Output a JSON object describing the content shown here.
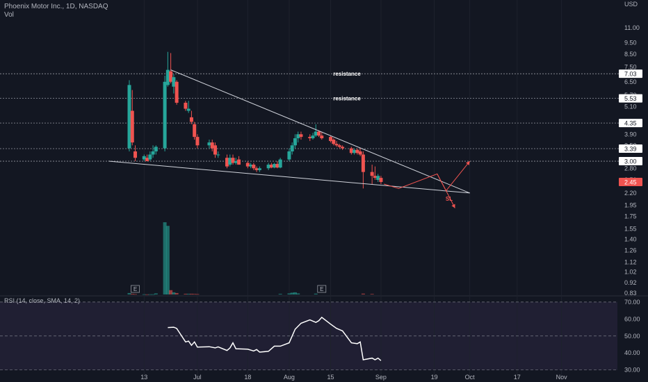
{
  "header": {
    "symbol_line": "Phoenix Motor Inc., 1D, NASDAQ",
    "volume_label": "Vol"
  },
  "colors": {
    "background": "#131722",
    "up": "#26a69a",
    "down": "#ef5350",
    "rsi_band": "#2a2540",
    "text": "#b2b5be"
  },
  "chart_data": [
    {
      "type": "candlestick",
      "title": "Phoenix Motor Inc., 1D, NASDAQ",
      "y_axis": {
        "unit": "USD",
        "scale": "log",
        "ticks": [
          "11.00",
          "9.50",
          "8.50",
          "7.50",
          "6.50",
          "5.70",
          "5.10",
          "4.35",
          "3.90",
          "3.50",
          "3.00",
          "2.80",
          "2.50",
          "2.20",
          "1.95",
          "1.75",
          "1.55",
          "1.40",
          "1.26",
          "1.12",
          "1.02",
          "0.92",
          "0.83"
        ]
      },
      "x_axis": {
        "ticks": [
          "13",
          "Jul",
          "18",
          "Aug",
          "15",
          "Sep",
          "19",
          "Oct",
          "17",
          "Nov"
        ],
        "range": [
          "2022-06-08",
          "2022-11-10"
        ]
      },
      "price_labels": [
        {
          "text": "7.03",
          "value": 7.03
        },
        {
          "text": "5.53",
          "value": 5.53
        },
        {
          "text": "4.35",
          "value": 4.35
        },
        {
          "text": "3.39",
          "value": 3.39
        },
        {
          "text": "3.00",
          "value": 3.0
        },
        {
          "text": "2.45",
          "value": 2.45,
          "color": "red"
        }
      ],
      "horizontal_levels": [
        7.03,
        5.53,
        4.35,
        3.39,
        3.0
      ],
      "annotations": [
        {
          "text": "resistance",
          "value": 7.03
        },
        {
          "text": "resistance",
          "value": 5.53
        },
        {
          "text": "SL",
          "color": "red"
        }
      ],
      "earnings_markers": [
        {
          "text": "E",
          "date": "2022-06-10"
        },
        {
          "text": "E",
          "date": "2022-08-12"
        }
      ],
      "candles": [
        {
          "date": "2022-06-08",
          "o": 3.4,
          "h": 6.6,
          "l": 3.3,
          "c": 6.3
        },
        {
          "date": "2022-06-09",
          "o": 4.9,
          "h": 6.0,
          "l": 3.5,
          "c": 3.6
        },
        {
          "date": "2022-06-10",
          "o": 3.3,
          "h": 3.5,
          "l": 3.0,
          "c": 3.1
        },
        {
          "date": "2022-06-13",
          "o": 3.05,
          "h": 3.2,
          "l": 3.0,
          "c": 3.15
        },
        {
          "date": "2022-06-14",
          "o": 3.1,
          "h": 3.2,
          "l": 3.0,
          "c": 3.0
        },
        {
          "date": "2022-06-15",
          "o": 3.05,
          "h": 3.3,
          "l": 3.0,
          "c": 3.2
        },
        {
          "date": "2022-06-16",
          "o": 3.2,
          "h": 3.5,
          "l": 3.1,
          "c": 3.3
        },
        {
          "date": "2022-06-17",
          "o": 3.3,
          "h": 3.5,
          "l": 3.2,
          "c": 3.45
        },
        {
          "date": "2022-06-20",
          "o": 3.4,
          "h": 6.9,
          "l": 3.3,
          "c": 6.5
        },
        {
          "date": "2022-06-21",
          "o": 6.3,
          "h": 8.7,
          "l": 6.2,
          "c": 7.3
        },
        {
          "date": "2022-06-22",
          "o": 7.2,
          "h": 8.6,
          "l": 6.4,
          "c": 6.5
        },
        {
          "date": "2022-06-23",
          "o": 6.2,
          "h": 7.0,
          "l": 5.8,
          "c": 6.8
        },
        {
          "date": "2022-06-24",
          "o": 6.5,
          "h": 6.6,
          "l": 5.2,
          "c": 5.3
        },
        {
          "date": "2022-06-27",
          "o": 5.3,
          "h": 5.4,
          "l": 4.9,
          "c": 5.0
        },
        {
          "date": "2022-06-28",
          "o": 4.9,
          "h": 5.4,
          "l": 4.8,
          "c": 5.0
        },
        {
          "date": "2022-06-29",
          "o": 4.6,
          "h": 4.9,
          "l": 4.3,
          "c": 4.4
        },
        {
          "date": "2022-06-30",
          "o": 4.3,
          "h": 4.4,
          "l": 3.7,
          "c": 3.8
        },
        {
          "date": "2022-07-01",
          "o": 3.8,
          "h": 3.9,
          "l": 3.4,
          "c": 3.5
        },
        {
          "date": "2022-07-05",
          "o": 3.5,
          "h": 3.7,
          "l": 3.4,
          "c": 3.6
        },
        {
          "date": "2022-07-06",
          "o": 3.6,
          "h": 3.7,
          "l": 3.3,
          "c": 3.4
        },
        {
          "date": "2022-07-07",
          "o": 3.5,
          "h": 3.6,
          "l": 3.1,
          "c": 3.2
        },
        {
          "date": "2022-07-08",
          "o": 3.2,
          "h": 3.3,
          "l": 3.1,
          "c": 3.2
        },
        {
          "date": "2022-07-11",
          "o": 3.1,
          "h": 3.2,
          "l": 2.8,
          "c": 2.85
        },
        {
          "date": "2022-07-12",
          "o": 2.9,
          "h": 3.2,
          "l": 2.85,
          "c": 3.1
        },
        {
          "date": "2022-07-13",
          "o": 3.1,
          "h": 3.2,
          "l": 2.9,
          "c": 2.95
        },
        {
          "date": "2022-07-14",
          "o": 2.95,
          "h": 3.1,
          "l": 2.9,
          "c": 3.0
        },
        {
          "date": "2022-07-15",
          "o": 3.05,
          "h": 3.15,
          "l": 2.9,
          "c": 2.9
        },
        {
          "date": "2022-07-18",
          "o": 2.95,
          "h": 3.0,
          "l": 2.8,
          "c": 2.85
        },
        {
          "date": "2022-07-19",
          "o": 2.85,
          "h": 2.95,
          "l": 2.8,
          "c": 2.9
        },
        {
          "date": "2022-07-20",
          "o": 2.9,
          "h": 2.95,
          "l": 2.75,
          "c": 2.8
        },
        {
          "date": "2022-07-21",
          "o": 2.8,
          "h": 2.85,
          "l": 2.7,
          "c": 2.75
        },
        {
          "date": "2022-07-22",
          "o": 2.75,
          "h": 2.85,
          "l": 2.7,
          "c": 2.8
        },
        {
          "date": "2022-07-25",
          "o": 2.8,
          "h": 2.95,
          "l": 2.75,
          "c": 2.9
        },
        {
          "date": "2022-07-26",
          "o": 2.9,
          "h": 2.95,
          "l": 2.8,
          "c": 2.82
        },
        {
          "date": "2022-07-27",
          "o": 2.82,
          "h": 2.95,
          "l": 2.8,
          "c": 2.92
        },
        {
          "date": "2022-07-28",
          "o": 2.92,
          "h": 3.0,
          "l": 2.8,
          "c": 2.82
        },
        {
          "date": "2022-07-29",
          "o": 2.82,
          "h": 3.1,
          "l": 2.8,
          "c": 3.05
        },
        {
          "date": "2022-08-01",
          "o": 3.05,
          "h": 3.4,
          "l": 3.0,
          "c": 3.3
        },
        {
          "date": "2022-08-02",
          "o": 3.3,
          "h": 3.6,
          "l": 3.2,
          "c": 3.5
        },
        {
          "date": "2022-08-03",
          "o": 3.5,
          "h": 3.9,
          "l": 3.4,
          "c": 3.75
        },
        {
          "date": "2022-08-04",
          "o": 3.75,
          "h": 4.0,
          "l": 3.6,
          "c": 3.9
        },
        {
          "date": "2022-08-05",
          "o": 3.9,
          "h": 4.0,
          "l": 3.7,
          "c": 3.8
        },
        {
          "date": "2022-08-08",
          "o": 3.8,
          "h": 3.9,
          "l": 3.65,
          "c": 3.75
        },
        {
          "date": "2022-08-09",
          "o": 3.75,
          "h": 3.95,
          "l": 3.7,
          "c": 3.85
        },
        {
          "date": "2022-08-10",
          "o": 3.85,
          "h": 4.3,
          "l": 3.8,
          "c": 4.0
        },
        {
          "date": "2022-08-11",
          "o": 4.0,
          "h": 4.05,
          "l": 3.8,
          "c": 3.85
        },
        {
          "date": "2022-08-12",
          "o": 3.85,
          "h": 4.0,
          "l": 3.7,
          "c": 3.75
        },
        {
          "date": "2022-08-15",
          "o": 3.8,
          "h": 3.85,
          "l": 3.6,
          "c": 3.65
        },
        {
          "date": "2022-08-16",
          "o": 3.7,
          "h": 3.75,
          "l": 3.5,
          "c": 3.55
        },
        {
          "date": "2022-08-17",
          "o": 3.55,
          "h": 3.65,
          "l": 3.45,
          "c": 3.5
        },
        {
          "date": "2022-08-18",
          "o": 3.5,
          "h": 3.55,
          "l": 3.4,
          "c": 3.45
        },
        {
          "date": "2022-08-19",
          "o": 3.45,
          "h": 3.5,
          "l": 3.35,
          "c": 3.4
        },
        {
          "date": "2022-08-22",
          "o": 3.4,
          "h": 3.45,
          "l": 3.2,
          "c": 3.25
        },
        {
          "date": "2022-08-23",
          "o": 3.25,
          "h": 3.4,
          "l": 3.2,
          "c": 3.35
        },
        {
          "date": "2022-08-24",
          "o": 3.35,
          "h": 3.4,
          "l": 3.2,
          "c": 3.25
        },
        {
          "date": "2022-08-25",
          "o": 3.3,
          "h": 3.4,
          "l": 3.15,
          "c": 3.2
        },
        {
          "date": "2022-08-26",
          "o": 3.2,
          "h": 3.3,
          "l": 2.3,
          "c": 2.7
        },
        {
          "date": "2022-08-29",
          "o": 2.7,
          "h": 2.9,
          "l": 2.4,
          "c": 2.6
        },
        {
          "date": "2022-08-30",
          "o": 2.6,
          "h": 2.85,
          "l": 2.5,
          "c": 2.55
        },
        {
          "date": "2022-08-31",
          "o": 2.5,
          "h": 2.65,
          "l": 2.45,
          "c": 2.6
        },
        {
          "date": "2022-09-01",
          "o": 2.55,
          "h": 2.6,
          "l": 2.4,
          "c": 2.45
        }
      ],
      "volume": [
        {
          "date": "2022-06-08",
          "v": 2
        },
        {
          "date": "2022-06-09",
          "v": 1
        },
        {
          "date": "2022-06-10",
          "v": 0.6
        },
        {
          "date": "2022-06-13",
          "v": 0.3
        },
        {
          "date": "2022-06-14",
          "v": 0.2
        },
        {
          "date": "2022-06-15",
          "v": 0.3
        },
        {
          "date": "2022-06-16",
          "v": 0.3
        },
        {
          "date": "2022-06-17",
          "v": 1.5
        },
        {
          "date": "2022-06-20",
          "v": 100
        },
        {
          "date": "2022-06-21",
          "v": 95
        },
        {
          "date": "2022-06-22",
          "v": 6
        },
        {
          "date": "2022-06-23",
          "v": 3
        },
        {
          "date": "2022-06-24",
          "v": 2
        },
        {
          "date": "2022-06-27",
          "v": 1
        },
        {
          "date": "2022-06-28",
          "v": 1
        },
        {
          "date": "2022-06-29",
          "v": 1
        },
        {
          "date": "2022-06-30",
          "v": 0.8
        },
        {
          "date": "2022-07-01",
          "v": 0.6
        },
        {
          "date": "2022-07-29",
          "v": 1
        },
        {
          "date": "2022-08-01",
          "v": 1.5
        },
        {
          "date": "2022-08-02",
          "v": 2.5
        },
        {
          "date": "2022-08-03",
          "v": 3
        },
        {
          "date": "2022-08-04",
          "v": 1.5
        },
        {
          "date": "2022-08-10",
          "v": 1.2
        },
        {
          "date": "2022-08-26",
          "v": 1.2
        },
        {
          "date": "2022-08-29",
          "v": 0.8
        }
      ],
      "trendlines": [
        {
          "name": "",
          "from": {
            "date": "2022-06-22",
            "value": 7.3
          },
          "to": {
            "date": "2022-10-01",
            "value": 2.2
          }
        },
        {
          "name": "",
          "from": {
            "date": "2022-06-01",
            "value": 3.0
          },
          "to": {
            "date": "2022-10-01",
            "value": 2.2
          }
        }
      ],
      "projection_paths": [
        {
          "points": [
            {
              "date": "2022-09-02",
              "value": 2.4
            },
            {
              "date": "2022-09-07",
              "value": 2.3
            },
            {
              "date": "2022-09-20",
              "value": 2.65
            },
            {
              "date": "2022-09-23",
              "value": 2.25
            },
            {
              "date": "2022-10-01",
              "value": 3.0
            }
          ]
        },
        {
          "points": [
            {
              "date": "2022-09-20",
              "value": 2.65
            },
            {
              "date": "2022-09-23",
              "value": 2.25
            },
            {
              "date": "2022-09-26",
              "value": 1.9
            }
          ]
        }
      ]
    },
    {
      "type": "line",
      "title": "RSI (14, close, SMA, 14, 2)",
      "y_axis": {
        "ticks": [
          "70.00",
          "60.00",
          "50.00",
          "40.00",
          "30.00"
        ],
        "ylim": [
          27,
          72
        ]
      },
      "levels": [
        70,
        50,
        30
      ],
      "series": [
        {
          "name": "",
          "points": [
            {
              "date": "2022-06-21",
              "value": 55
            },
            {
              "date": "2022-06-23",
              "value": 55.2
            },
            {
              "date": "2022-06-24",
              "value": 54.5
            },
            {
              "date": "2022-06-27",
              "value": 46.5
            },
            {
              "date": "2022-06-28",
              "value": 47
            },
            {
              "date": "2022-06-29",
              "value": 44.5
            },
            {
              "date": "2022-06-30",
              "value": 46.5
            },
            {
              "date": "2022-07-01",
              "value": 43.5
            },
            {
              "date": "2022-07-05",
              "value": 43.7
            },
            {
              "date": "2022-07-07",
              "value": 43
            },
            {
              "date": "2022-07-08",
              "value": 43.6
            },
            {
              "date": "2022-07-11",
              "value": 41.5
            },
            {
              "date": "2022-07-12",
              "value": 43
            },
            {
              "date": "2022-07-13",
              "value": 46
            },
            {
              "date": "2022-07-14",
              "value": 42.5
            },
            {
              "date": "2022-07-18",
              "value": 42.2
            },
            {
              "date": "2022-07-20",
              "value": 41.2
            },
            {
              "date": "2022-07-21",
              "value": 42
            },
            {
              "date": "2022-07-22",
              "value": 40.5
            },
            {
              "date": "2022-07-25",
              "value": 41
            },
            {
              "date": "2022-07-27",
              "value": 44
            },
            {
              "date": "2022-07-29",
              "value": 44
            },
            {
              "date": "2022-08-01",
              "value": 46
            },
            {
              "date": "2022-08-03",
              "value": 54
            },
            {
              "date": "2022-08-05",
              "value": 57.5
            },
            {
              "date": "2022-08-08",
              "value": 59.5
            },
            {
              "date": "2022-08-10",
              "value": 58
            },
            {
              "date": "2022-08-11",
              "value": 59
            },
            {
              "date": "2022-08-12",
              "value": 61
            },
            {
              "date": "2022-08-15",
              "value": 57
            },
            {
              "date": "2022-08-17",
              "value": 54.5
            },
            {
              "date": "2022-08-19",
              "value": 53
            },
            {
              "date": "2022-08-22",
              "value": 46
            },
            {
              "date": "2022-08-24",
              "value": 45.5
            },
            {
              "date": "2022-08-25",
              "value": 46.5
            },
            {
              "date": "2022-08-26",
              "value": 36
            },
            {
              "date": "2022-08-29",
              "value": 37
            },
            {
              "date": "2022-08-30",
              "value": 36
            },
            {
              "date": "2022-08-31",
              "value": 37
            },
            {
              "date": "2022-09-01",
              "value": 35.5
            }
          ]
        }
      ]
    }
  ]
}
